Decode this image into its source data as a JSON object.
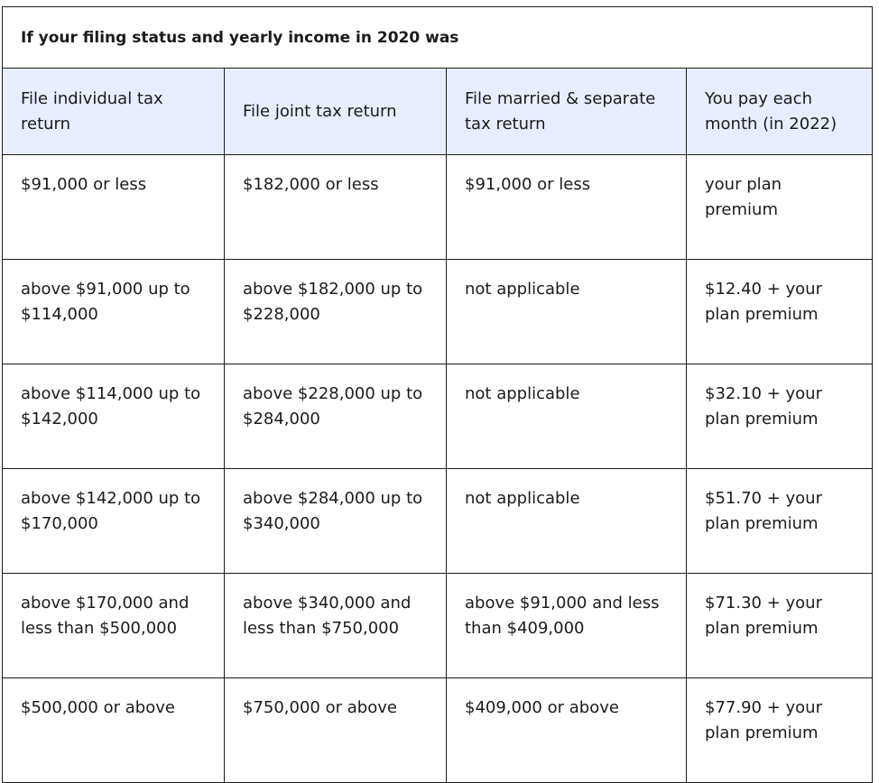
{
  "caption": "If your filing status and yearly income in 2020 was",
  "headers": [
    "File individual tax return",
    "File joint tax return",
    "File married & separate tax return",
    "You pay each month (in 2022)"
  ],
  "rows": [
    [
      "$91,000 or less",
      "$182,000 or less",
      "$91,000 or less",
      "your plan premium"
    ],
    [
      "above $91,000 up to $114,000",
      "above $182,000 up to $228,000",
      "not applicable",
      "$12.40 + your plan premium"
    ],
    [
      "above $114,000 up to $142,000",
      "above $228,000 up to $284,000",
      "not applicable",
      "$32.10 + your plan premium"
    ],
    [
      "above $142,000 up to $170,000",
      "above $284,000 up to $340,000",
      "not applicable",
      "$51.70 + your plan premium"
    ],
    [
      "above $170,000 and less than $500,000",
      "above $340,000 and less than $750,000",
      "above $91,000 and less than $409,000",
      "$71.30 + your plan premium"
    ],
    [
      "$500,000 or above",
      "$750,000 or above",
      "$409,000 or above",
      "$77.90 + your plan premium"
    ]
  ],
  "colors": {
    "header_background": "#e8eeff",
    "border": "#1b1b1b",
    "text": "#1b1b1b"
  }
}
